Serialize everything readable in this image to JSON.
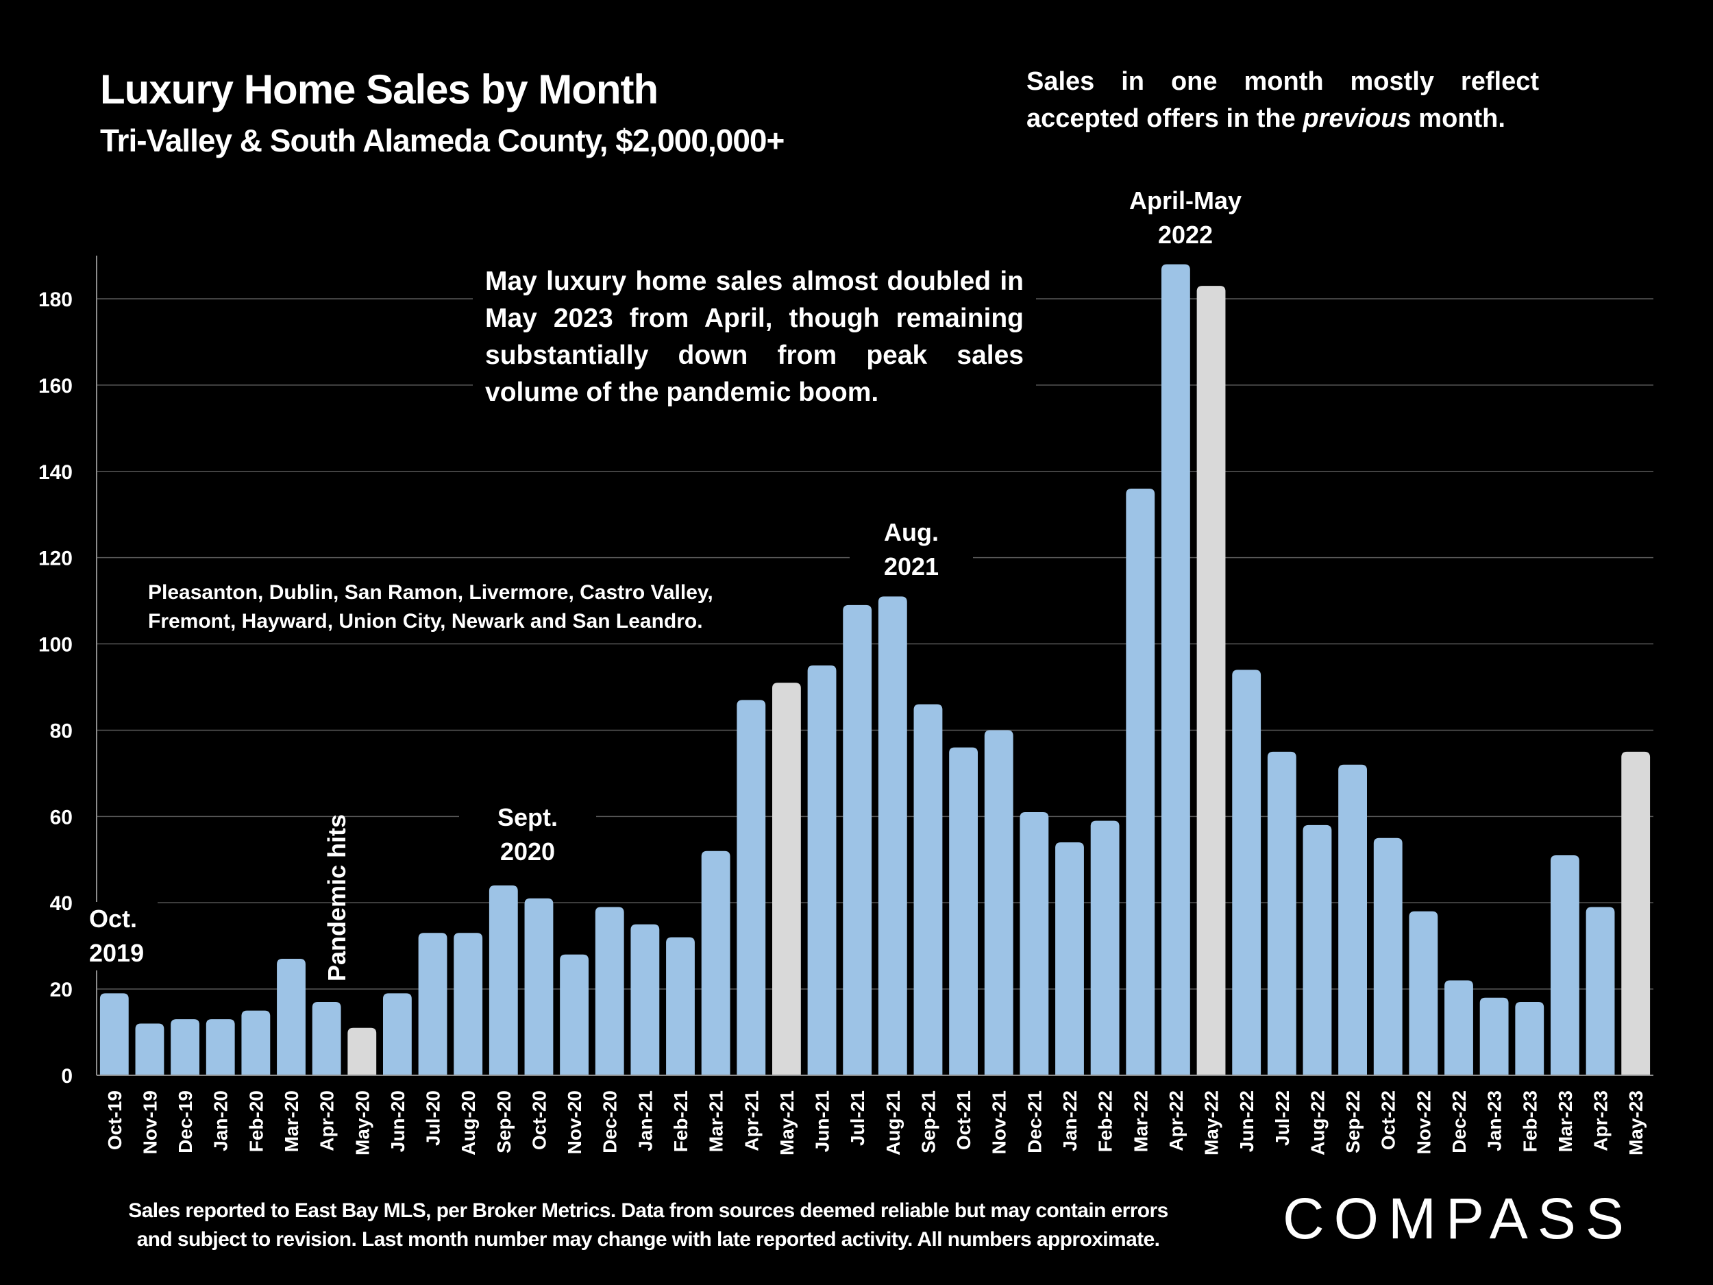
{
  "header": {
    "title": "Luxury Home Sales by Month",
    "subtitle": "Tri-Valley & South Alameda County, $2,000,000+"
  },
  "notes": {
    "top_right_part1": "Sales in one month mostly reflect accepted offers in the ",
    "top_right_italic": "previous",
    "top_right_part2": " month.",
    "main": "May luxury home sales almost doubled in May 2023 from April, though remaining substantially down from peak sales volume of the pandemic boom.",
    "cities": "Pleasanton, Dublin, San Ramon, Livermore, Castro Valley, Fremont, Hayward, Union City, Newark and San Leandro."
  },
  "annotations": {
    "oct2019_line1": "Oct.",
    "oct2019_line2": "2019",
    "pandemic": "Pandemic hits",
    "sept2020_line1": "Sept.",
    "sept2020_line2": "2020",
    "aug2021_line1": "Aug.",
    "aug2021_line2": "2021",
    "aprmay2022_line1": "April-May",
    "aprmay2022_line2": "2022"
  },
  "footer": {
    "line1": "Sales reported to East Bay MLS, per Broker Metrics. Data from sources deemed reliable but may contain errors",
    "line2": "and subject to revision. Last month number may change with late reported activity. All numbers approximate.",
    "logo": "COMPASS"
  },
  "colors": {
    "bar": "#9DC3E6",
    "highlight_bar": "#D9D9D9",
    "grid": "#595959",
    "background": "#000000",
    "text": "#FFFFFF"
  },
  "chart_data": {
    "type": "bar",
    "title": "Luxury Home Sales by Month",
    "subtitle": "Tri-Valley & South Alameda County, $2,000,000+",
    "xlabel": "",
    "ylabel": "",
    "ylim": [
      0,
      190
    ],
    "yticks": [
      0,
      20,
      40,
      60,
      80,
      100,
      120,
      140,
      160,
      180
    ],
    "grid": true,
    "legend": "none",
    "categories": [
      "Oct-19",
      "Nov-19",
      "Dec-19",
      "Jan-20",
      "Feb-20",
      "Mar-20",
      "Apr-20",
      "May-20",
      "Jun-20",
      "Jul-20",
      "Aug-20",
      "Sep-20",
      "Oct-20",
      "Nov-20",
      "Dec-20",
      "Jan-21",
      "Feb-21",
      "Mar-21",
      "Apr-21",
      "May-21",
      "Jun-21",
      "Jul-21",
      "Aug-21",
      "Sep-21",
      "Oct-21",
      "Nov-21",
      "Dec-21",
      "Jan-22",
      "Feb-22",
      "Mar-22",
      "Apr-22",
      "May-22",
      "Jun-22",
      "Jul-22",
      "Aug-22",
      "Sep-22",
      "Oct-22",
      "Nov-22",
      "Dec-22",
      "Jan-23",
      "Feb-23",
      "Mar-23",
      "Apr-23",
      "May-23"
    ],
    "values": [
      19,
      12,
      13,
      13,
      15,
      27,
      17,
      11,
      19,
      33,
      33,
      44,
      41,
      28,
      39,
      35,
      32,
      52,
      87,
      91,
      95,
      109,
      111,
      86,
      76,
      80,
      61,
      54,
      59,
      136,
      188,
      183,
      94,
      75,
      58,
      72,
      55,
      38,
      22,
      18,
      17,
      51,
      39,
      75
    ],
    "highlighted": [
      "May-20",
      "May-21",
      "May-22",
      "May-23"
    ]
  }
}
